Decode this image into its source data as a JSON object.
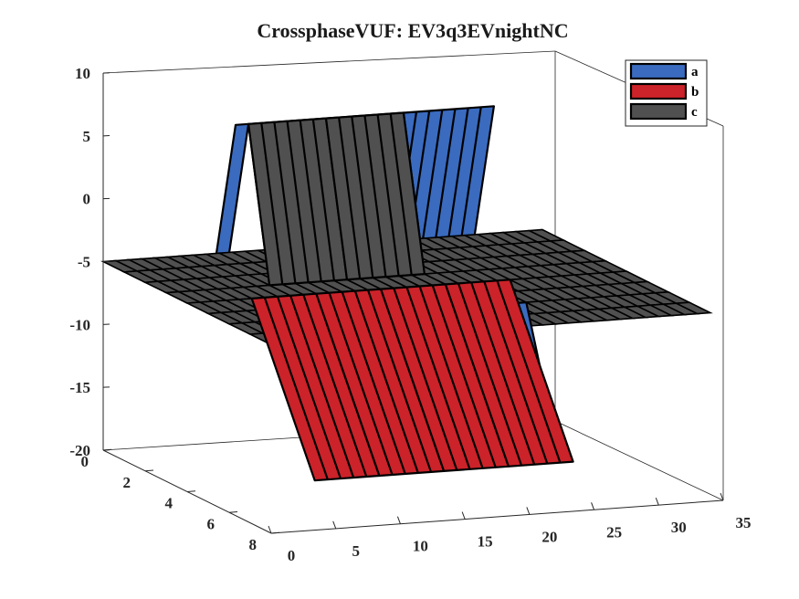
{
  "chart_data": {
    "type": "surface3d",
    "title": "CrossphaseVUF: EV3q3EVnightNC",
    "xlim": [
      0,
      35
    ],
    "ylim": [
      0,
      8
    ],
    "zlim": [
      -20,
      10
    ],
    "x_ticks": [
      0,
      5,
      10,
      15,
      20,
      25,
      30,
      35
    ],
    "y_ticks": [
      0,
      2,
      4,
      6,
      8
    ],
    "z_ticks": [
      10,
      5,
      0,
      -5,
      -10,
      -15,
      -20
    ],
    "legend": {
      "placement": "top-right",
      "entries": [
        "a",
        "b",
        "c"
      ]
    },
    "series": [
      {
        "name": "a",
        "color": "#3a6bbf",
        "peaks": [
          {
            "x": 8,
            "y": 2,
            "z": 7
          },
          {
            "x": 23,
            "y": 2,
            "z": 7
          }
        ],
        "troughs": [
          {
            "x": 22,
            "y": 7,
            "z": -12
          },
          {
            "x": 9,
            "y": 6,
            "z": -16
          }
        ]
      },
      {
        "name": "b",
        "color": "#cc2229",
        "troughs": [
          {
            "x": 10,
            "y": 7,
            "z": -17
          },
          {
            "x": 15,
            "y": 7,
            "z": -17
          },
          {
            "x": 20,
            "y": 7,
            "z": -17
          },
          {
            "x": 25,
            "y": 7,
            "z": -17
          }
        ]
      },
      {
        "name": "c",
        "color": "#505050",
        "peaks": [
          {
            "x": 8,
            "y": 2,
            "z": 7
          },
          {
            "x": 14,
            "y": 2,
            "z": 7
          }
        ]
      }
    ],
    "grid": false
  }
}
